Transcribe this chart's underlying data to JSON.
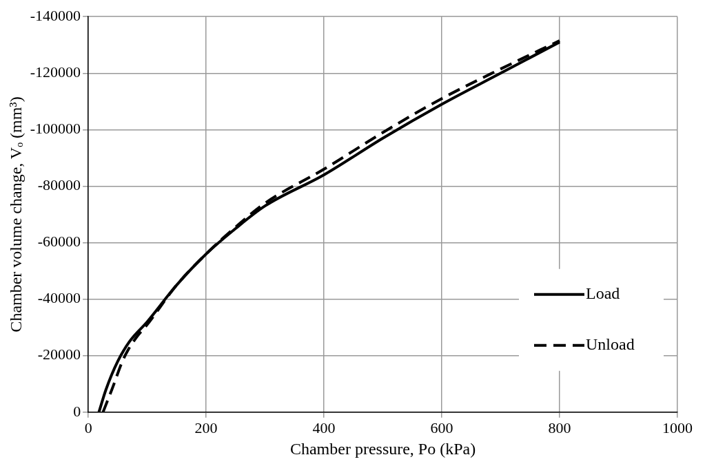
{
  "chart_data": {
    "type": "line",
    "xlabel": "Chamber pressure, Po (kPa)",
    "ylabel": "Chamber volume change, Vₒ (mm³)",
    "xlim": [
      0,
      1000
    ],
    "xticks": [
      0,
      200,
      400,
      600,
      800,
      1000
    ],
    "ylim": [
      0,
      -140000
    ],
    "yticks": [
      0,
      -20000,
      -40000,
      -60000,
      -80000,
      -100000,
      -120000,
      -140000
    ],
    "grid": true,
    "legend": "bottom right",
    "marker": "none",
    "series": [
      {
        "name": "Load",
        "color": "#000000",
        "line_style": "solid",
        "x": [
          18,
          30,
          50,
          70,
          100,
          150,
          200,
          250,
          300,
          400,
          500,
          600,
          700,
          800
        ],
        "values": [
          0,
          -8000,
          -18000,
          -25000,
          -32000,
          -45000,
          -56000,
          -65000,
          -73000,
          -84000,
          -97000,
          -109000,
          -120000,
          -131000
        ]
      },
      {
        "name": "Unload",
        "color": "#000000",
        "line_style": "dashed",
        "x": [
          25,
          40,
          60,
          80,
          100,
          150,
          200,
          250,
          300,
          400,
          500,
          600,
          700,
          800
        ],
        "values": [
          0,
          -8000,
          -19000,
          -26000,
          -31000,
          -45000,
          -56000,
          -65500,
          -74000,
          -86000,
          -99000,
          -111000,
          -121500,
          -131500
        ]
      }
    ]
  }
}
